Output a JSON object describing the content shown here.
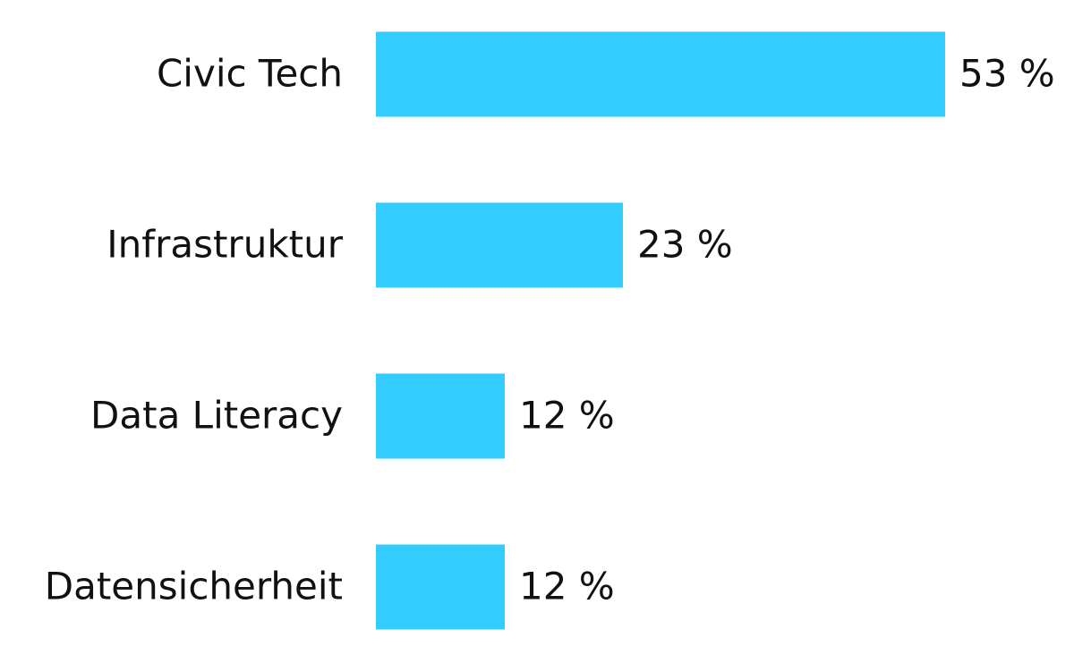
{
  "chart_data": {
    "type": "bar",
    "categories": [
      "Civic Tech",
      "Infrastruktur",
      "Data Literacy",
      "Datensicherheit"
    ],
    "values": [
      53,
      23,
      12,
      12
    ],
    "value_labels": [
      "53 %",
      "23 %",
      "12 %",
      "12 %"
    ],
    "color": "#33ccff"
  }
}
